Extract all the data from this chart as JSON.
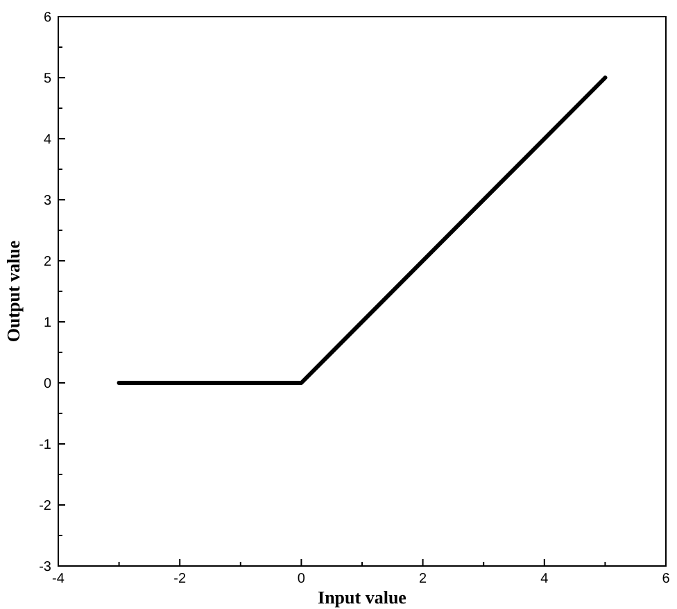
{
  "chart_data": {
    "type": "line",
    "xlabel": "Input value",
    "ylabel": "Output value",
    "x": [
      -3,
      0,
      5
    ],
    "series": [
      {
        "color": "#000000",
        "values": [
          0,
          0,
          5
        ]
      }
    ],
    "xlim": [
      -4,
      6
    ],
    "ylim": [
      -3,
      6
    ],
    "xticks": [
      -4,
      {
        "value": -3,
        "label": null
      },
      -2,
      {
        "value": -1,
        "label": null
      },
      0,
      {
        "value": 1,
        "label": null
      },
      2,
      {
        "value": 3,
        "label": null
      },
      4,
      {
        "value": 5,
        "label": null
      },
      6
    ],
    "yticks": [
      -3,
      {
        "value": -2.5,
        "label": null
      },
      -2,
      {
        "value": -1.5,
        "label": null
      },
      -1,
      {
        "value": -0.5,
        "label": null
      },
      0,
      {
        "value": 0.5,
        "label": null
      },
      1,
      {
        "value": 1.5,
        "label": null
      },
      2,
      {
        "value": 2.5,
        "label": null
      },
      3,
      {
        "value": 3.5,
        "label": null
      },
      4,
      {
        "value": 4.5,
        "label": null
      },
      5,
      {
        "value": 5.5,
        "label": null
      },
      6
    ],
    "grid": false,
    "marker": "none",
    "line_style": "solid"
  }
}
